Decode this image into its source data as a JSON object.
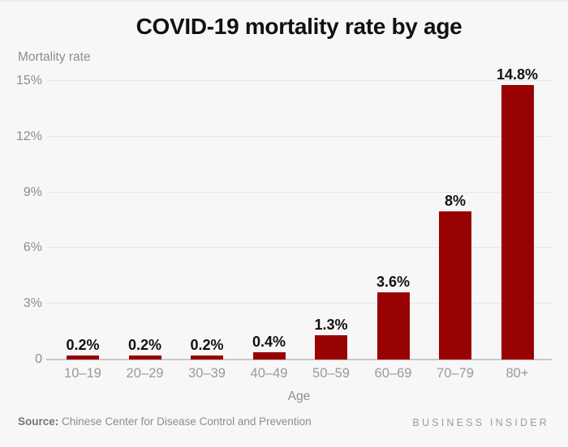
{
  "page": {
    "background": "#f7f7f7"
  },
  "chart_data": {
    "type": "bar",
    "title": "COVID-19 mortality rate by age",
    "ylabel": "Mortality rate",
    "xlabel": "Age",
    "categories": [
      "10–19",
      "20–29",
      "30–39",
      "40–49",
      "50–59",
      "60–69",
      "70–79",
      "80+"
    ],
    "values": [
      0.2,
      0.2,
      0.2,
      0.4,
      1.3,
      3.6,
      8,
      14.8
    ],
    "value_labels": [
      "0.2%",
      "0.2%",
      "0.2%",
      "0.4%",
      "1.3%",
      "3.6%",
      "8%",
      "14.8%"
    ],
    "yticks": {
      "values": [
        0,
        3,
        6,
        9,
        12,
        15
      ],
      "labels": [
        "0",
        "3%",
        "6%",
        "9%",
        "12%",
        "15%"
      ]
    },
    "ylim": [
      0,
      15
    ],
    "grid": "horizontal",
    "legend": "none",
    "bar_color": "#990202"
  },
  "colors": {
    "background": "#f7f7f7",
    "bar": "#990202",
    "gridline": "#e7e7e7",
    "zero_line": "#c9c9c9",
    "text_dark": "#111111",
    "text_gray": "#8d8d8d"
  },
  "footer": {
    "source_label": "Source:",
    "source_text": "Chinese Center for Disease Control and Prevention",
    "brand": "BUSINESS INSIDER"
  }
}
